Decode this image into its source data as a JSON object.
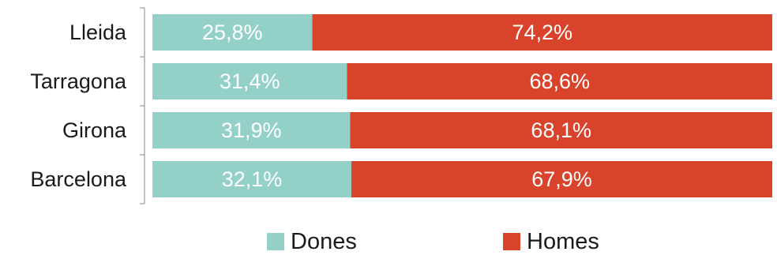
{
  "chart_data": {
    "type": "bar",
    "orientation": "horizontal",
    "stacked": true,
    "percent": true,
    "categories": [
      "Lleida",
      "Tarragona",
      "Girona",
      "Barcelona"
    ],
    "series": [
      {
        "name": "Dones",
        "values": [
          25.8,
          31.4,
          31.9,
          32.1
        ],
        "labels": [
          "25,8%",
          "31,4%",
          "31,9%",
          "32,1%"
        ],
        "color": "#93d0c8"
      },
      {
        "name": "Homes",
        "values": [
          74.2,
          68.6,
          68.1,
          67.9
        ],
        "labels": [
          "74,2%",
          "68,6%",
          "68,1%",
          "67,9%"
        ],
        "color": "#d9432b"
      }
    ],
    "xlim": [
      0,
      100
    ],
    "grid": false,
    "legend_position": "bottom"
  }
}
